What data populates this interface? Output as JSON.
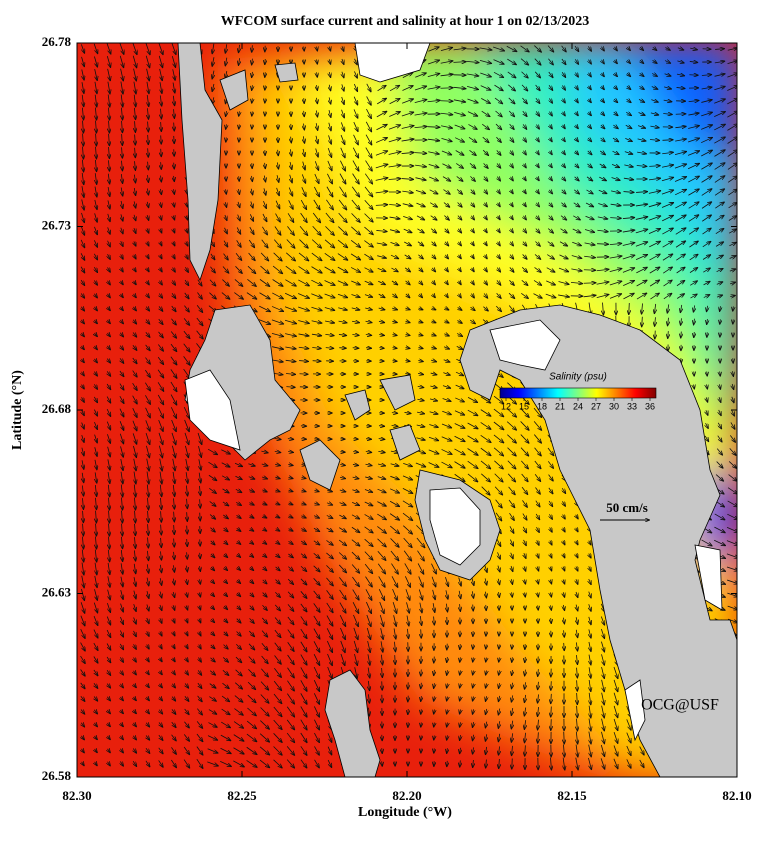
{
  "title": "WFCOM surface current and salinity at hour 1 on 02/13/2023",
  "xlabel": "Longitude (°W)",
  "ylabel": "Latitude (°N)",
  "xlim": [
    82.3,
    82.1
  ],
  "ylim": [
    26.58,
    26.78
  ],
  "xticks": [
    {
      "value": 82.3,
      "label": "82.30"
    },
    {
      "value": 82.25,
      "label": "82.25"
    },
    {
      "value": 82.2,
      "label": "82.20"
    },
    {
      "value": 82.15,
      "label": "82.15"
    },
    {
      "value": 82.1,
      "label": "82.10"
    }
  ],
  "yticks": [
    26.78,
    26.73,
    26.68,
    26.63,
    26.58
  ],
  "colorbar": {
    "title": "Salinity (psu)",
    "lim": [
      11,
      37
    ],
    "ticks": [
      12,
      15,
      18,
      21,
      24,
      27,
      30,
      33,
      36
    ]
  },
  "scale_label": "50 cm/s",
  "credit": "OCG@USF"
}
